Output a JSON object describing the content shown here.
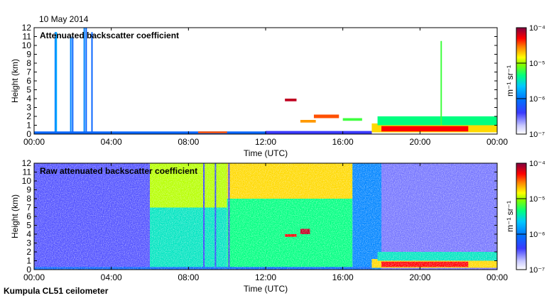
{
  "header": {
    "date": "10 May 2014"
  },
  "footer": {
    "station": "Kumpula CL51 ceilometer"
  },
  "chart_data": [
    {
      "type": "heatmap",
      "title": "Attenuated backscatter coefficient",
      "xlabel": "Time (UTC)",
      "ylabel": "Height (km)",
      "xticks": [
        "00:00",
        "04:00",
        "08:00",
        "12:00",
        "16:00",
        "20:00",
        "00:00"
      ],
      "xlim_hours": [
        0,
        24
      ],
      "yticks": [
        0,
        1,
        2,
        3,
        4,
        5,
        6,
        7,
        8,
        9,
        10,
        11,
        12
      ],
      "ylim_km": [
        0,
        12
      ],
      "colorbar": {
        "label": "m⁻¹ sr⁻¹",
        "scale": "log",
        "range": [
          1e-07,
          0.0001
        ],
        "ticks": [
          "10⁻⁷",
          "10⁻⁶",
          "10⁻⁵",
          "10⁻⁴"
        ]
      },
      "features": [
        {
          "type": "streak",
          "t": 1.1,
          "h0": 0,
          "h1": 11.5,
          "level": 0.35
        },
        {
          "type": "streak",
          "t": 1.15,
          "h0": 0,
          "h1": 11.5,
          "level": 0.4
        },
        {
          "type": "streak",
          "t": 1.9,
          "h0": 0,
          "h1": 11.0,
          "level": 0.35
        },
        {
          "type": "streak",
          "t": 2.0,
          "h0": 0,
          "h1": 11.0,
          "level": 0.3
        },
        {
          "type": "streak",
          "t": 2.6,
          "h0": 0,
          "h1": 12.0,
          "level": 0.35
        },
        {
          "type": "streak",
          "t": 2.7,
          "h0": 0,
          "h1": 12.0,
          "level": 0.3
        },
        {
          "type": "streak",
          "t": 3.0,
          "h0": 0,
          "h1": 11.5,
          "level": 0.3
        },
        {
          "type": "layer",
          "t0": 0,
          "t1": 17.5,
          "h0": 0,
          "h1": 0.3,
          "level": 0.3
        },
        {
          "type": "layer",
          "t0": 8.5,
          "t1": 10,
          "h0": 0.1,
          "h1": 0.3,
          "level": 0.85
        },
        {
          "type": "layer",
          "t0": 12.0,
          "t1": 17.5,
          "h0": 0,
          "h1": 0.35,
          "level": 0.2
        },
        {
          "type": "layer",
          "t0": 13.0,
          "t1": 13.6,
          "h0": 3.7,
          "h1": 4.0,
          "level": 0.95
        },
        {
          "type": "layer",
          "t0": 14.5,
          "t1": 15.8,
          "h0": 1.8,
          "h1": 2.2,
          "level": 0.85
        },
        {
          "type": "layer",
          "t0": 13.8,
          "t1": 14.6,
          "h0": 1.3,
          "h1": 1.6,
          "level": 0.8
        },
        {
          "type": "layer",
          "t0": 16.0,
          "t1": 17.0,
          "h0": 1.5,
          "h1": 1.8,
          "level": 0.6
        },
        {
          "type": "layer",
          "t0": 17.5,
          "t1": 24,
          "h0": 0.2,
          "h1": 1.2,
          "level": 0.75
        },
        {
          "type": "layer",
          "t0": 18.0,
          "t1": 22.5,
          "h0": 0.3,
          "h1": 0.9,
          "level": 0.9
        },
        {
          "type": "layer",
          "t0": 17.8,
          "t1": 24,
          "h0": 1.0,
          "h1": 2.0,
          "level": 0.55
        },
        {
          "type": "streak",
          "t": 21.1,
          "h0": 1.0,
          "h1": 10.5,
          "level": 0.6
        }
      ]
    },
    {
      "type": "heatmap",
      "title": "Raw attenuated backscatter coefficient",
      "xlabel": "Time (UTC)",
      "ylabel": "Height (km)",
      "xticks": [
        "00:00",
        "04:00",
        "08:00",
        "12:00",
        "16:00",
        "20:00",
        "00:00"
      ],
      "xlim_hours": [
        0,
        24
      ],
      "yticks": [
        0,
        1,
        2,
        3,
        4,
        5,
        6,
        7,
        8,
        9,
        10,
        11,
        12
      ],
      "ylim_km": [
        0,
        12
      ],
      "colorbar": {
        "label": "m⁻¹ sr⁻¹",
        "scale": "log",
        "range": [
          1e-07,
          0.0001
        ],
        "ticks": [
          "10⁻⁷",
          "10⁻⁶",
          "10⁻⁵",
          "10⁻⁴"
        ]
      },
      "features": [
        {
          "type": "layer",
          "t0": 0,
          "t1": 6.0,
          "h0": 0,
          "h1": 12,
          "level": 0.18
        },
        {
          "type": "layer",
          "t0": 6.0,
          "t1": 10.0,
          "h0": 0,
          "h1": 12,
          "level": 0.5
        },
        {
          "type": "layer",
          "t0": 6.0,
          "t1": 10.0,
          "h0": 7,
          "h1": 12,
          "level": 0.68
        },
        {
          "type": "layer",
          "t0": 10.0,
          "t1": 16.5,
          "h0": 0,
          "h1": 12,
          "level": 0.55
        },
        {
          "type": "layer",
          "t0": 10.0,
          "t1": 16.5,
          "h0": 8,
          "h1": 12,
          "level": 0.75
        },
        {
          "type": "layer",
          "t0": 16.5,
          "t1": 18.0,
          "h0": 0,
          "h1": 12,
          "level": 0.35
        },
        {
          "type": "layer",
          "t0": 18.0,
          "t1": 24,
          "h0": 0,
          "h1": 12,
          "level": 0.15
        },
        {
          "type": "streak",
          "t": 8.8,
          "h0": 0,
          "h1": 12,
          "level": 0.2
        },
        {
          "type": "streak",
          "t": 9.4,
          "h0": 0,
          "h1": 12,
          "level": 0.22
        },
        {
          "type": "streak",
          "t": 10.1,
          "h0": 0,
          "h1": 12,
          "level": 0.2
        },
        {
          "type": "layer",
          "t0": 13.0,
          "t1": 13.6,
          "h0": 3.7,
          "h1": 4.0,
          "level": 0.9
        },
        {
          "type": "layer",
          "t0": 13.8,
          "t1": 14.3,
          "h0": 4.0,
          "h1": 4.6,
          "level": 0.95
        },
        {
          "type": "layer",
          "t0": 0,
          "t1": 17.5,
          "h0": 0,
          "h1": 0.3,
          "level": 0.3
        },
        {
          "type": "layer",
          "t0": 17.5,
          "t1": 24,
          "h0": 0.2,
          "h1": 1.2,
          "level": 0.75
        },
        {
          "type": "layer",
          "t0": 18.0,
          "t1": 22.5,
          "h0": 0.3,
          "h1": 0.9,
          "level": 0.9
        },
        {
          "type": "layer",
          "t0": 17.8,
          "t1": 24,
          "h0": 1.0,
          "h1": 2.0,
          "level": 0.5
        }
      ]
    }
  ]
}
